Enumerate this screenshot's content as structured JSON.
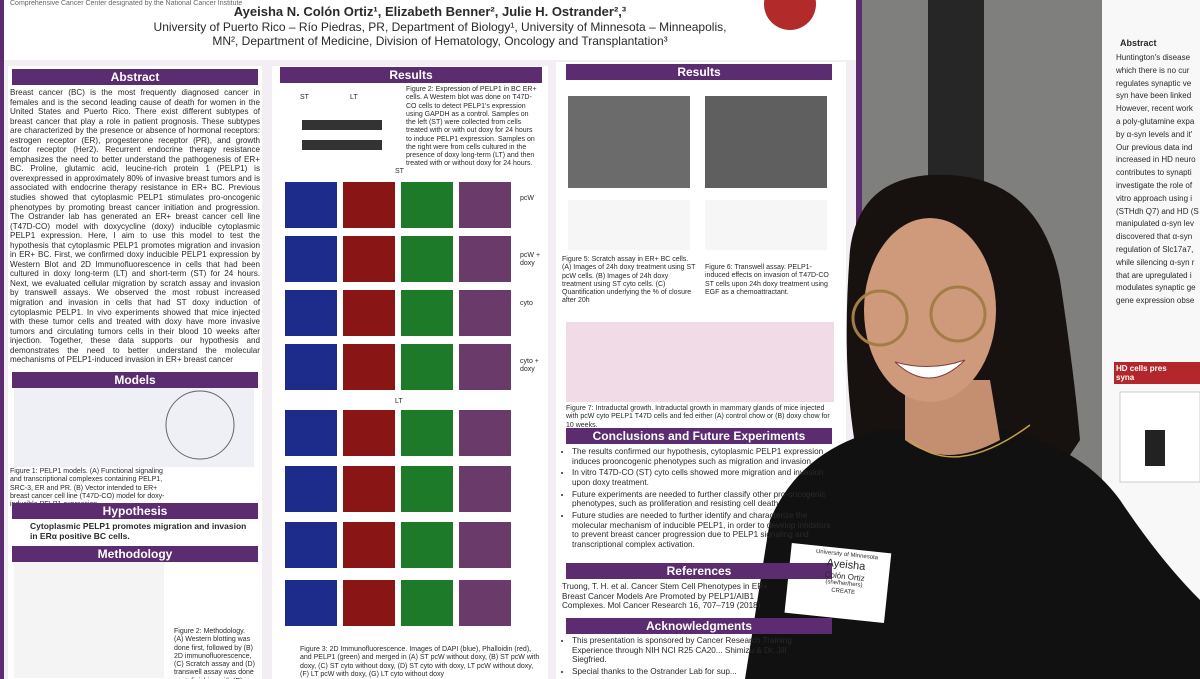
{
  "header": {
    "institution": "Comprehensive Cancer Center designated by the National Cancer Institute",
    "authors": "Ayeisha N. Colón Ortiz¹, Elizabeth Benner², Julie H. Ostrander²,³",
    "affiliations": "University of Puerto Rico – Río Piedras, PR, Department of Biology¹, University of Minnesota – Minneapolis, MN², Department of Medicine, Division of Hematology, Oncology and Transplantation³"
  },
  "abstract": {
    "title": "Abstract",
    "text": "Breast cancer (BC) is the most frequently diagnosed cancer in females and is the second leading cause of death for women in the United States and Puerto Rico. There exist different subtypes of breast cancer that play a role in patient prognosis. These subtypes are characterized by the presence or absence of hormonal receptors: estrogen receptor (ER), progesterone receptor (PR), and growth factor receptor (Her2). Recurrent endocrine therapy resistance emphasizes the need to better understand the pathogenesis of ER+ BC. Proline, glutamic acid, leucine-rich protein 1 (PELP1) is overexpressed in approximately 80% of invasive breast tumors and is associated with endocrine therapy resistance in ER+ BC. Previous studies showed that cytoplasmic PELP1 stimulates pro-oncogenic phenotypes by promoting breast cancer initiation and progression. The Ostrander lab has generated an ER+ breast cancer cell line (T47D-CO) model with doxycycline (doxy) inducible cytoplasmic PELP1 expression. Here, I aim to use this model to test the hypothesis that cytoplasmic PELP1 promotes migration and invasion in ER+ BC. First, we confirmed doxy inducible PELP1 expression by Western Blot and 2D Immunofluorescence in cells that had been cultured in doxy long-term (LT) and short-term (ST) for 24 hours. Next, we evaluated cellular migration by scratch assay and invasion by transwell assays. We observed the most robust increased migration and invasion in cells that had ST doxy induction of cytoplasmic PELP1. In vivo experiments showed that mice injected with these tumor cells and treated with doxy have more invasive tumors and circulating tumors cells in their blood 10 weeks after injection. Together, these data supports our hypothesis and demonstrates the need to better understand the molecular mechanisms of PELP1-induced invasion in ER+ breast cancer"
  },
  "models": {
    "title": "Models",
    "caption": "Figure 1: PELP1 models. (A) Functional signaling and transcriptional complexes containing PELP1, SRC-3, ER and PR. (B) Vector intended to ER+ breast cancer cell line (T47D-CO) model for doxy-inducible PELP1 expression."
  },
  "hypothesis": {
    "title": "Hypothesis",
    "text": "Cytoplasmic PELP1 promotes migration and invasion in ERα positive BC cells."
  },
  "methodology": {
    "title": "Methodology",
    "caption": "Figure 2: Methodology. (A) Western blotting was done first, followed by (B) 2D immunofluorescence, (C) Scratch assay and (D) transwell assay was done next, finishing with (E)"
  },
  "results_left": {
    "title": "Results",
    "fig2": "Figure 2: Expression of PELP1 in BC ER+ cells. A Western blot was done on T47D-CO cells to detect PELP1's expression using GAPDH as a control. Samples on the left (ST) were collected from cells treated with or with out doxy for 24 hours to induce PELP1 expression. Samples on the right were from cells cultured in the presence of doxy long-term (LT) and then treated with or without doxy for 24 hours.",
    "fig3": "Figure 3: 2D Immunofluorescence. Images of DAPI (blue), Phalloidin (red), and PELP1 (green) and merged in (A) ST pcW without doxy, (B) ST pcW with doxy, (C) ST cyto without doxy, (D) ST cyto with doxy, LT pcW without doxy, (F) LT pcW with doxy, (G) LT cyto without doxy",
    "labels": [
      "ST",
      "LT",
      "pcW",
      "pcW + doxy",
      "cyto",
      "cyto + doxy"
    ]
  },
  "results_right": {
    "title": "Results",
    "fig5": "Figure 5: Scratch assay in ER+ BC cells. (A) Images of 24h doxy treatment using ST pcW cells. (B) Images of 24h doxy treatment using ST cyto cells. (C) Quantification underlying the % of closure after 20h",
    "fig6": "Figure 6: Transwell assay. PELP1-induced effects on invasion of T47D-CO ST cells upon 24h doxy treatment using EGF as a chemoattractant.",
    "fig7": "Figure 7: Intraductal growth. Intraductal growth in mammary glands of mice injected with pcW cyto PELP1 T47D cells and fed either (A) control chow or (B) doxy chow for 10 weeks."
  },
  "conclusions": {
    "title": "Conclusions and Future Experiments",
    "bullets": [
      "The results confirmed our hypothesis, cytoplasmic PELP1 expression induces prooncogenic phenotypes such as migration and invasion.",
      "In vitro T47D-CO (ST) cyto cells showed more migration and invasion upon doxy treatment.",
      "Future experiments are needed to further classify other pro-oncogenic phenotypes, such as proliferation and resisting cell death.",
      "Future studies are needed to further identify and characterize the molecular mechanism of inducible PELP1, in order to develop inhibitors to prevent breast cancer progression due to PELP1 signaling and transcriptional complex activation."
    ]
  },
  "references": {
    "title": "References",
    "text": "Truong, T. H. et al. Cancer Stem Cell Phenotypes in ER+ Breast Cancer Models Are Promoted by PELP1/AIB1 Complexes. Mol Cancer Research 16, 707–719 (2018)"
  },
  "acknowledgments": {
    "title": "Acknowledgments",
    "items": [
      "This presentation is sponsored by Cancer Research Training Experience through NIH NCI R25 CA20... Shimizu & Dr. Jill Siegfried.",
      "Special thanks to the Ostrander Lab for sup..."
    ]
  },
  "name_tag": {
    "org": "University of Minnesota",
    "first": "Ayeisha",
    "last": "Colón Ortiz",
    "pronouns": "(she/her/hers)",
    "program": "CREATE"
  },
  "right_poster": {
    "title": "Abstract",
    "text": "Huntington's disease\nwhich there is no cur\nregulates synaptic ve\nsyn have been linked\nHowever, recent work\na poly-glutamine expa\nby α-syn levels and it'\nOur previous data ind\nincreased in HD neuro\ncontributes to synapti\ninvestigate the role of\nvitro approach using i\n(STHdh Q7) and HD (S\nmanipulated α-syn lev\ndiscovered that α-syn\nregulation of Slc17a7,\nwhile silencing α-syn r\nthat are upregulated i\nmodulates synaptic ge\ngene expression obse",
    "heading": "HD cells pres\nsyna"
  }
}
